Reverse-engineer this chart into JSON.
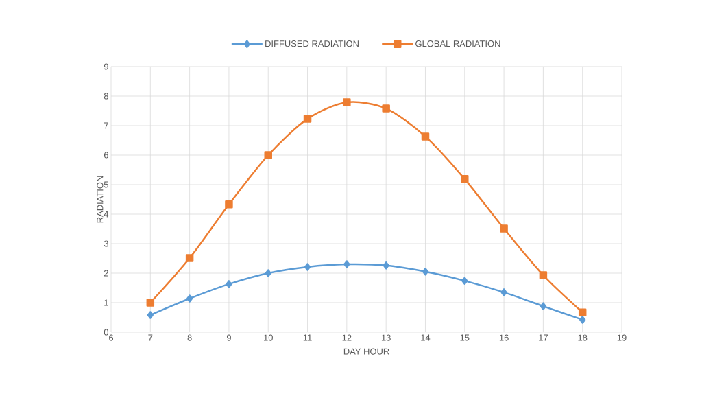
{
  "chart_data": {
    "type": "line",
    "xlabel": "DAY HOUR",
    "ylabel": "RADIATION",
    "x": [
      7,
      8,
      9,
      10,
      11,
      12,
      13,
      14,
      15,
      16,
      17,
      18
    ],
    "series": [
      {
        "name": "DIFFUSED RADIATION",
        "color": "#5b9bd5",
        "marker": "diamond",
        "values": [
          0.58,
          1.14,
          1.63,
          2.0,
          2.21,
          2.3,
          2.26,
          2.05,
          1.74,
          1.35,
          0.88,
          0.42
        ]
      },
      {
        "name": "GLOBAL RADIATION",
        "color": "#ed7d31",
        "marker": "square",
        "values": [
          1.0,
          2.51,
          4.33,
          6.0,
          7.23,
          7.79,
          7.58,
          6.63,
          5.19,
          3.51,
          1.93,
          0.67
        ]
      }
    ],
    "xlim": [
      6,
      19
    ],
    "ylim": [
      0,
      9
    ],
    "xticks": [
      6,
      7,
      8,
      9,
      10,
      11,
      12,
      13,
      14,
      15,
      16,
      17,
      18,
      19
    ],
    "yticks": [
      0,
      1,
      2,
      3,
      4,
      5,
      6,
      7,
      8,
      9
    ],
    "grid": true,
    "legend": "top",
    "line_style": "solid"
  }
}
